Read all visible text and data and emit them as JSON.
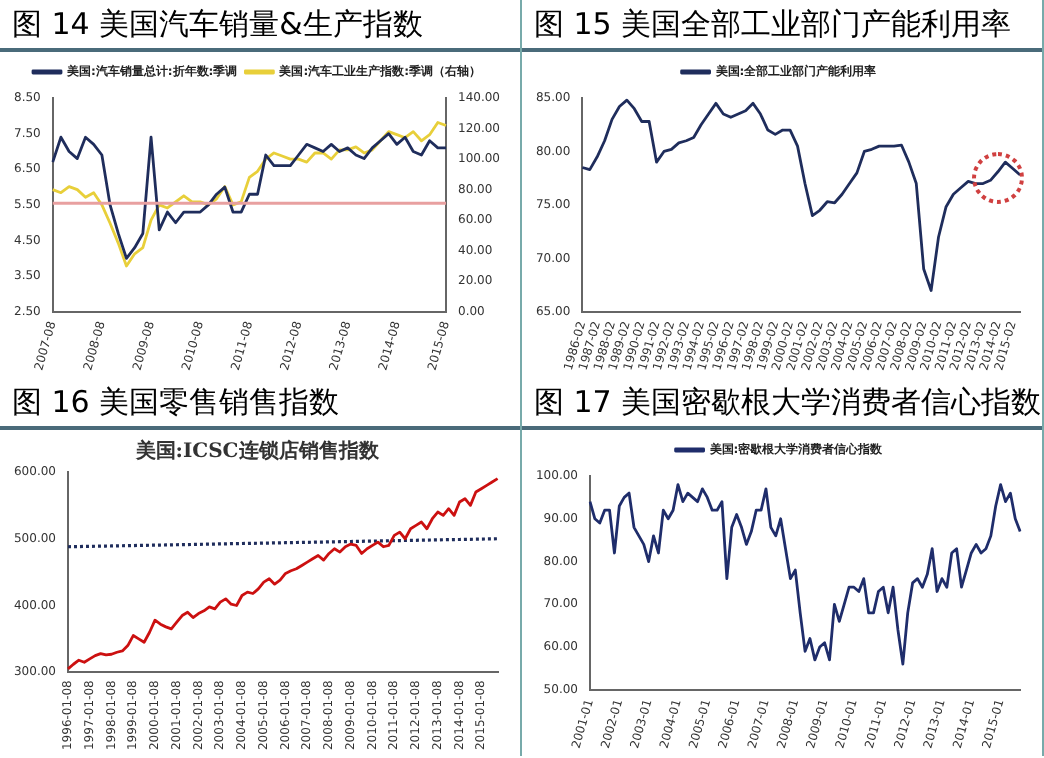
{
  "chart_data": [
    {
      "type": "line",
      "title": "图 14 美国汽车销量&生产指数",
      "legend": "top",
      "categories": [
        "2007-08",
        null,
        null,
        null,
        null,
        null,
        "2008-08",
        null,
        null,
        null,
        null,
        null,
        "2009-08",
        null,
        null,
        null,
        null,
        null,
        "2010-08",
        null,
        null,
        null,
        null,
        null,
        "2011-08",
        null,
        null,
        null,
        null,
        null,
        "2012-08",
        null,
        null,
        null,
        null,
        null,
        "2013-08",
        null,
        null,
        null,
        null,
        null,
        "2014-08",
        null,
        null,
        null,
        null,
        null,
        "2015-08"
      ],
      "ylim": [
        2.5,
        8.5
      ],
      "yticks": [
        {
          "value": 2.5,
          "label": "2.50"
        },
        {
          "value": 3.5,
          "label": "3.50"
        },
        {
          "value": 4.5,
          "label": "4.50"
        },
        {
          "value": 5.5,
          "label": "5.50"
        },
        {
          "value": 6.5,
          "label": "6.50"
        },
        {
          "value": 7.5,
          "label": "7.50"
        },
        {
          "value": 8.5,
          "label": "8.50"
        }
      ],
      "y2lim": [
        0,
        140
      ],
      "y2ticks": [
        {
          "value": 0,
          "label": "0.00"
        },
        {
          "value": 20,
          "label": "20.00"
        },
        {
          "value": 40,
          "label": "40.00"
        },
        {
          "value": 60,
          "label": "60.00"
        },
        {
          "value": 80,
          "label": "80.00"
        },
        {
          "value": 100,
          "label": "100.00"
        },
        {
          "value": 120,
          "label": "120.00"
        },
        {
          "value": 140,
          "label": "140.00"
        }
      ],
      "ref_lines": [
        {
          "axis": "y",
          "value": 5.55,
          "color": "#e8a0a0"
        }
      ],
      "series": [
        {
          "name": "美国:汽车销量总计:折年数:季调",
          "color": "#1f2d5c",
          "values": [
            6.7,
            7.4,
            7.0,
            6.8,
            7.4,
            7.2,
            6.9,
            5.5,
            4.7,
            4.0,
            4.3,
            4.7,
            7.4,
            4.8,
            5.3,
            5.0,
            5.3,
            5.3,
            5.3,
            5.5,
            5.8,
            6.0,
            5.3,
            5.3,
            5.8,
            5.8,
            6.9,
            6.6,
            6.6,
            6.6,
            6.9,
            7.2,
            7.1,
            7.0,
            7.2,
            7.0,
            7.1,
            6.9,
            6.8,
            7.1,
            7.3,
            7.5,
            7.2,
            7.4,
            7.0,
            6.9,
            7.3,
            7.1,
            7.1
          ]
        },
        {
          "name": "美国:汽车工业生产指数:季调（右轴）",
          "color": "#e8cf3a",
          "axis": "y2",
          "values": [
            80,
            78,
            82,
            80,
            75,
            78,
            70,
            58,
            45,
            30,
            38,
            42,
            60,
            70,
            68,
            72,
            76,
            72,
            72,
            70,
            74,
            82,
            70,
            72,
            88,
            92,
            100,
            104,
            102,
            100,
            100,
            98,
            104,
            104,
            100,
            106,
            106,
            108,
            104,
            106,
            112,
            118,
            116,
            114,
            118,
            112,
            116,
            124,
            122
          ]
        }
      ]
    },
    {
      "type": "line",
      "title": "图 15 美国全部工业部门产能利用率",
      "legend": "top",
      "categories": [
        "1986-02",
        null,
        "1987-02",
        null,
        "1988-02",
        null,
        "1989-02",
        null,
        "1990-02",
        null,
        "1991-02",
        null,
        "1992-02",
        null,
        "1993-02",
        null,
        "1994-02",
        null,
        "1995-02",
        null,
        "1996-02",
        null,
        "1997-02",
        null,
        "1998-02",
        null,
        "1999-02",
        null,
        "2000-02",
        null,
        "2001-02",
        null,
        "2002-02",
        null,
        "2003-02",
        null,
        "2004-02",
        null,
        "2005-02",
        null,
        "2006-02",
        null,
        "2007-02",
        null,
        "2008-02",
        null,
        "2009-02",
        null,
        "2010-02",
        null,
        "2011-02",
        null,
        "2012-02",
        null,
        "2013-02",
        null,
        "2014-02",
        null,
        "2015-02",
        null
      ],
      "ylim": [
        65,
        85
      ],
      "yticks": [
        {
          "value": 65,
          "label": "65.00"
        },
        {
          "value": 70,
          "label": "70.00"
        },
        {
          "value": 75,
          "label": "75.00"
        },
        {
          "value": 80,
          "label": "80.00"
        },
        {
          "value": 85,
          "label": "85.00"
        }
      ],
      "series": [
        {
          "name": "美国:全部工业部门产能利用率",
          "color": "#1f2d5c",
          "values": [
            78.5,
            78.3,
            79.5,
            81,
            83,
            84.2,
            84.8,
            84,
            82.8,
            82.8,
            79,
            80,
            80.2,
            80.8,
            81,
            81.3,
            82.5,
            83.5,
            84.5,
            83.5,
            83.2,
            83.5,
            83.8,
            84.5,
            83.5,
            82,
            81.6,
            82,
            82,
            80.5,
            77,
            74,
            74.5,
            75.3,
            75.2,
            76,
            77,
            78,
            80,
            80.2,
            80.5,
            80.5,
            80.5,
            80.6,
            79,
            77,
            69,
            67,
            72,
            74.8,
            76,
            76.6,
            77.2,
            77,
            77,
            77.3,
            78.1,
            79,
            78.4,
            77.8
          ]
        }
      ]
    },
    {
      "type": "line",
      "title": "图 16 美国零售销售指数",
      "subtitle": "美国:ICSC连锁店销售指数",
      "categories": [
        "1996-01-08",
        null,
        null,
        null,
        "1997-01-08",
        null,
        null,
        null,
        "1998-01-08",
        null,
        null,
        null,
        "1999-01-08",
        null,
        null,
        null,
        "2000-01-08",
        null,
        null,
        null,
        "2001-01-08",
        null,
        null,
        null,
        "2002-01-08",
        null,
        null,
        null,
        "2003-01-08",
        null,
        null,
        null,
        "2004-01-08",
        null,
        null,
        null,
        "2005-01-08",
        null,
        null,
        null,
        "2006-01-08",
        null,
        null,
        null,
        "2007-01-08",
        null,
        null,
        null,
        "2008-01-08",
        null,
        null,
        null,
        "2009-01-08",
        null,
        null,
        null,
        "2010-01-08",
        null,
        null,
        null,
        "2011-01-08",
        null,
        null,
        null,
        "2012-01-08",
        null,
        null,
        null,
        "2013-01-08",
        null,
        null,
        null,
        "2014-01-08",
        null,
        null,
        null,
        "2015-01-08",
        null,
        null,
        null
      ],
      "ylim": [
        300,
        600
      ],
      "yticks": [
        {
          "value": 300,
          "label": "300.00"
        },
        {
          "value": 400,
          "label": "400.00"
        },
        {
          "value": 500,
          "label": "500.00"
        },
        {
          "value": 600,
          "label": "600.00"
        }
      ],
      "series": [
        {
          "color": "#cc1010",
          "values": [
            305,
            312,
            318,
            315,
            320,
            325,
            328,
            326,
            327,
            330,
            332,
            340,
            355,
            350,
            345,
            360,
            378,
            372,
            368,
            365,
            375,
            385,
            390,
            382,
            388,
            392,
            398,
            395,
            405,
            410,
            402,
            400,
            415,
            420,
            418,
            425,
            435,
            440,
            432,
            438,
            448,
            452,
            455,
            460,
            465,
            470,
            475,
            468,
            478,
            485,
            480,
            488,
            492,
            490,
            478,
            485,
            490,
            495,
            488,
            490,
            505,
            510,
            500,
            515,
            520,
            525,
            515,
            530,
            540,
            535,
            545,
            535,
            555,
            560,
            550,
            570,
            575,
            580,
            585,
            590
          ]
        },
        {
          "color": "#1f2d5c",
          "line_style": "dotted",
          "values": [
            488.0,
            488.2,
            488.3,
            488.5,
            488.6,
            488.8,
            488.9,
            489.1,
            489.2,
            489.4,
            489.5,
            489.7,
            489.8,
            490.0,
            490.1,
            490.3,
            490.4,
            490.6,
            490.7,
            490.9,
            491.0,
            491.2,
            491.3,
            491.5,
            491.6,
            491.8,
            491.9,
            492.1,
            492.3,
            492.4,
            492.6,
            492.7,
            492.9,
            493.0,
            493.2,
            493.3,
            493.5,
            493.6,
            493.8,
            493.9,
            494.1,
            494.2,
            494.4,
            494.5,
            494.7,
            494.8,
            495.0,
            495.1,
            495.3,
            495.4,
            495.6,
            495.7,
            495.9,
            496.1,
            496.2,
            496.4,
            496.5,
            496.7,
            496.8,
            497.0,
            497.1,
            497.3,
            497.4,
            497.6,
            497.7,
            497.9,
            498.0,
            498.2,
            498.3,
            498.5,
            498.6,
            498.8,
            498.9,
            499.1,
            499.2,
            499.4,
            499.5,
            499.7,
            499.8,
            500.0
          ]
        }
      ]
    },
    {
      "type": "line",
      "title": "图 17 美国密歇根大学消费者信心指数",
      "legend": "top",
      "categories": [
        "2001-01",
        null,
        null,
        null,
        null,
        null,
        "2002-01",
        null,
        null,
        null,
        null,
        null,
        "2003-01",
        null,
        null,
        null,
        null,
        null,
        "2004-01",
        null,
        null,
        null,
        null,
        null,
        "2005-01",
        null,
        null,
        null,
        null,
        null,
        "2006-01",
        null,
        null,
        null,
        null,
        null,
        "2007-01",
        null,
        null,
        null,
        null,
        null,
        "2008-01",
        null,
        null,
        null,
        null,
        null,
        "2009-01",
        null,
        null,
        null,
        null,
        null,
        "2010-01",
        null,
        null,
        null,
        null,
        null,
        "2011-01",
        null,
        null,
        null,
        null,
        null,
        "2012-01",
        null,
        null,
        null,
        null,
        null,
        "2013-01",
        null,
        null,
        null,
        null,
        null,
        "2014-01",
        null,
        null,
        null,
        null,
        null,
        "2015-01",
        null,
        null,
        null,
        null
      ],
      "ylim": [
        50,
        100
      ],
      "yticks": [
        {
          "value": 50,
          "label": "50.00"
        },
        {
          "value": 60,
          "label": "60.00"
        },
        {
          "value": 70,
          "label": "70.00"
        },
        {
          "value": 80,
          "label": "80.00"
        },
        {
          "value": 90,
          "label": "90.00"
        },
        {
          "value": 100,
          "label": "100.00"
        }
      ],
      "series": [
        {
          "name": "美国:密歇根大学消费者信心指数",
          "color": "#1f2d6b",
          "values": [
            94,
            90,
            89,
            92,
            92,
            82,
            93,
            95,
            96,
            88,
            86,
            84,
            80,
            86,
            82,
            92,
            90,
            92,
            98,
            94,
            96,
            95,
            94,
            97,
            95,
            92,
            92,
            94,
            76,
            88,
            91,
            88,
            84,
            87,
            92,
            92,
            97,
            88,
            86,
            90,
            83,
            76,
            78,
            68,
            59,
            62,
            57,
            60,
            61,
            57,
            70,
            66,
            70,
            74,
            74,
            73,
            76,
            68,
            68,
            73,
            74,
            68,
            74,
            64,
            56,
            68,
            75,
            76,
            74,
            77,
            83,
            73,
            76,
            74,
            82,
            83,
            74,
            78,
            82,
            84,
            82,
            83,
            86,
            93,
            98,
            94,
            96,
            90,
            87
          ]
        }
      ]
    }
  ]
}
